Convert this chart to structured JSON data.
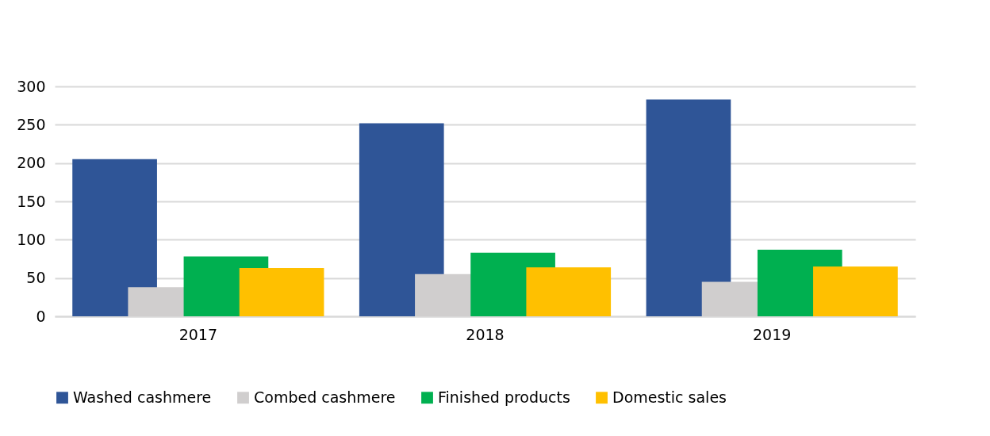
{
  "chart_data": {
    "type": "bar",
    "categories": [
      "2017",
      "2018",
      "2019"
    ],
    "series": [
      {
        "name": "Washed cashmere",
        "color": "#2f5597",
        "values": [
          205,
          252,
          283
        ]
      },
      {
        "name": "Combed cashmere",
        "color": "#d0cece",
        "values": [
          38,
          55,
          45
        ]
      },
      {
        "name": "Finished products",
        "color": "#00b050",
        "values": [
          78,
          83,
          87
        ]
      },
      {
        "name": "Domestic sales",
        "color": "#ffc000",
        "values": [
          63,
          64,
          65
        ]
      }
    ],
    "ylim": [
      0,
      300
    ],
    "yticks": [
      0,
      50,
      100,
      150,
      200,
      250,
      300
    ],
    "grid": "y",
    "legend": "bottom"
  }
}
